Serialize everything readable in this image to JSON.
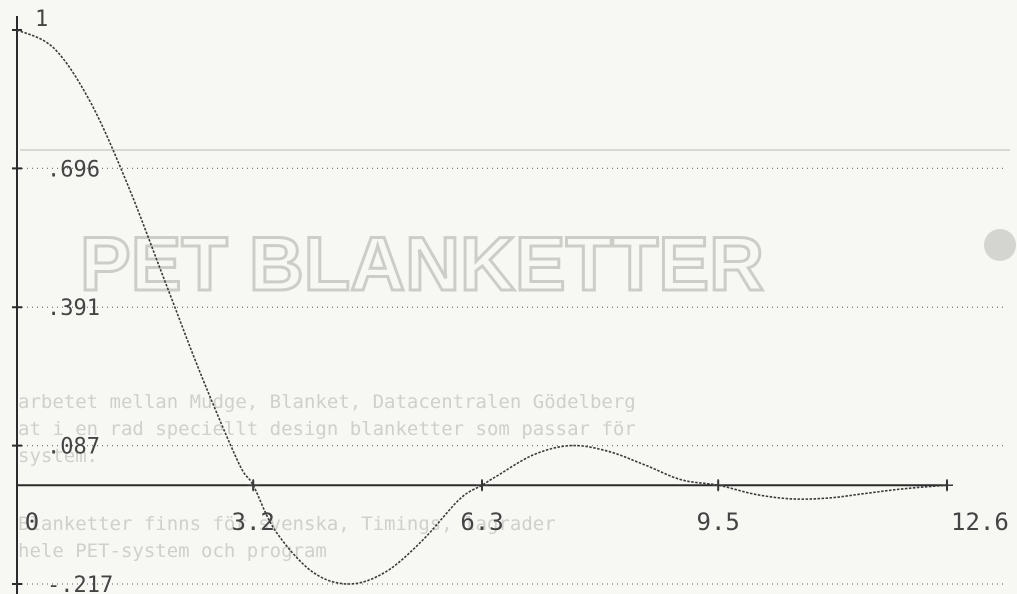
{
  "chart_data": {
    "type": "line",
    "title": "",
    "xlabel": "",
    "ylabel": "",
    "xlim": [
      0,
      12.6
    ],
    "ylim": [
      -0.217,
      1
    ],
    "x_ticks": [
      {
        "value": 0,
        "label": "0"
      },
      {
        "value": 3.2,
        "label": "3.2"
      },
      {
        "value": 6.3,
        "label": "6.3"
      },
      {
        "value": 9.5,
        "label": "9.5"
      },
      {
        "value": 12.6,
        "label": "12.6"
      }
    ],
    "y_ticks": [
      {
        "value": 1,
        "label": "1"
      },
      {
        "value": 0.696,
        "label": ".696"
      },
      {
        "value": 0.391,
        "label": ".391"
      },
      {
        "value": 0.087,
        "label": ".087"
      },
      {
        "value": -0.217,
        "label": "-.217"
      }
    ],
    "grid": "dotted horizontal at y ticks",
    "series": [
      {
        "x": [
          0,
          0.5,
          1.0,
          1.5,
          2.0,
          2.5,
          3.0,
          3.2,
          3.5,
          4.0,
          4.5,
          5.0,
          5.5,
          6.0,
          6.3,
          6.5,
          7.0,
          7.5,
          8.0,
          8.5,
          9.0,
          9.5,
          10.0,
          10.5,
          11.0,
          11.5,
          12.0,
          12.6
        ],
        "y": [
          1.0,
          0.96,
          0.84,
          0.66,
          0.45,
          0.24,
          0.05,
          0.0,
          -0.1,
          -0.19,
          -0.217,
          -0.19,
          -0.12,
          -0.03,
          0.0,
          0.02,
          0.067,
          0.087,
          0.075,
          0.045,
          0.012,
          0.0,
          -0.02,
          -0.03,
          -0.028,
          -0.018,
          -0.008,
          0.0
        ]
      }
    ]
  },
  "background": {
    "title": "PET BLANKETTER",
    "lines": [
      "arbetet mellan Mudge, Blanket, Datacentralen Gödelberg",
      "at i en rad speciellt design blanketter som passar för",
      "system.",
      "Blanketter finns för svenska, Timings, lagrader",
      "hele PET-system och program"
    ]
  }
}
